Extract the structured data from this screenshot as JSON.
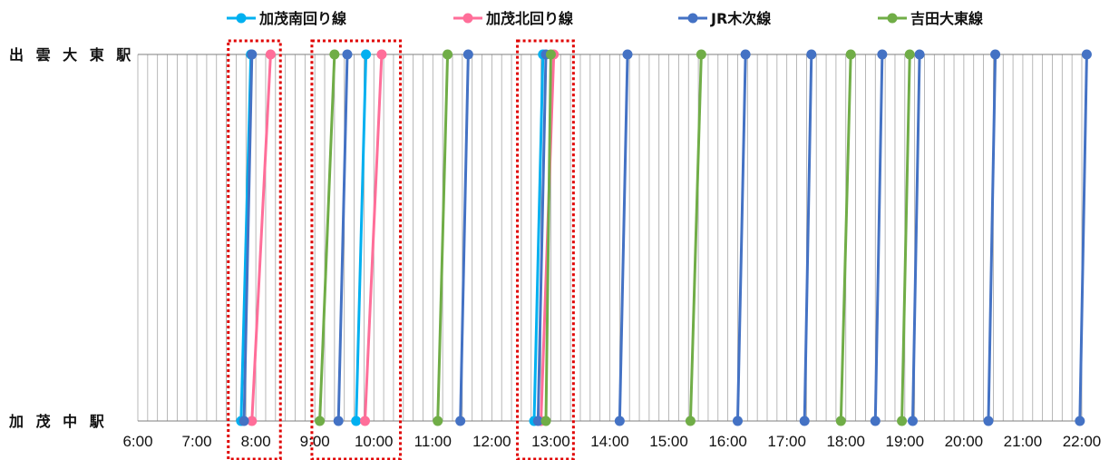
{
  "chart_data": {
    "type": "line",
    "title": "",
    "xlabel": "",
    "ylabel": "",
    "x_unit": "time of day",
    "xlim": [
      "6:00",
      "22:00"
    ],
    "x_ticks": [
      "6:00",
      "7:00",
      "8:00",
      "9:00",
      "10:00",
      "11:00",
      "12:00",
      "13:00",
      "14:00",
      "15:00",
      "16:00",
      "17:00",
      "18:00",
      "19:00",
      "20:00",
      "21:00",
      "22:00"
    ],
    "grid": "vertical every 10 minutes",
    "y_categories": [
      "加 茂 中 駅",
      "出 雲 大 東 駅"
    ],
    "legend_position": "top",
    "series": [
      {
        "name": "加茂南回り線",
        "color": "#00b0f0",
        "trips": [
          [
            "7:45",
            "7:55"
          ],
          [
            "9:42",
            "9:52"
          ],
          [
            "12:43",
            "12:52"
          ]
        ]
      },
      {
        "name": "加茂北回り線",
        "color": "#ff6e99",
        "trips": [
          [
            "7:56",
            "8:15"
          ],
          [
            "9:51",
            "10:08"
          ],
          [
            "12:50",
            "13:03"
          ]
        ]
      },
      {
        "name": "JR木次線",
        "color": "#4472c4",
        "trips": [
          [
            "7:48",
            "7:56"
          ],
          [
            "9:24",
            "9:33"
          ],
          [
            "11:28",
            "11:36"
          ],
          [
            "12:47",
            "12:55"
          ],
          [
            "14:10",
            "14:18"
          ],
          [
            "16:10",
            "16:18"
          ],
          [
            "17:18",
            "17:25"
          ],
          [
            "18:30",
            "18:37"
          ],
          [
            "19:08",
            "19:15"
          ],
          [
            "20:25",
            "20:32"
          ],
          [
            "21:58",
            "22:05"
          ]
        ]
      },
      {
        "name": "吉田大東線",
        "color": "#70ad47",
        "trips": [
          [
            "9:05",
            "9:20"
          ],
          [
            "11:05",
            "11:15"
          ],
          [
            "12:55",
            "13:00"
          ],
          [
            "15:22",
            "15:33"
          ],
          [
            "17:55",
            "18:05"
          ],
          [
            "18:57",
            "19:05"
          ]
        ]
      }
    ],
    "annotations": [
      {
        "type": "dotted-box",
        "color": "#e00000",
        "from": "7:32",
        "to": "8:25"
      },
      {
        "type": "dotted-box",
        "color": "#e00000",
        "from": "8:57",
        "to": "10:27"
      },
      {
        "type": "dotted-box",
        "color": "#e00000",
        "from": "12:26",
        "to": "13:23"
      }
    ]
  }
}
